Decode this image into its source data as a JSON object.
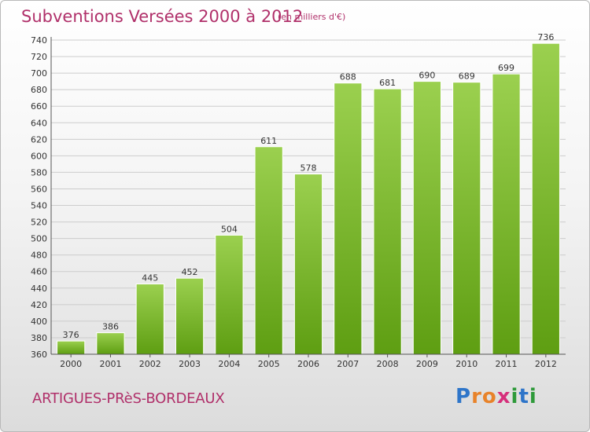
{
  "header": {
    "title": "Subventions Versées 2000 à 2012",
    "unit": "(en milliers d'€)"
  },
  "footer": {
    "commune": "ARTIGUES-PRèS-BORDEAUX",
    "logo_letters": [
      "P",
      "r",
      "o",
      "x",
      "i",
      "t",
      "i"
    ],
    "logo_colors": [
      "#2e75c9",
      "#e8832a",
      "#e8832a",
      "#d62f7b",
      "#2e9a3a",
      "#2e75c9",
      "#2e9a3a"
    ]
  },
  "chart_data": {
    "type": "bar",
    "categories": [
      "2000",
      "2001",
      "2002",
      "2003",
      "2004",
      "2005",
      "2006",
      "2007",
      "2008",
      "2009",
      "2010",
      "2011",
      "2012"
    ],
    "values": [
      376,
      386,
      445,
      452,
      504,
      611,
      578,
      688,
      681,
      690,
      689,
      699,
      736
    ],
    "title": "Subventions Versées 2000 à 2012",
    "ylim": [
      360,
      740
    ],
    "ytick_step": 20,
    "grid": true,
    "colors": {
      "bar_top": "#9bd04f",
      "bar_bottom": "#5e9e12",
      "grid": "#cccccc",
      "axis": "#555555"
    }
  }
}
